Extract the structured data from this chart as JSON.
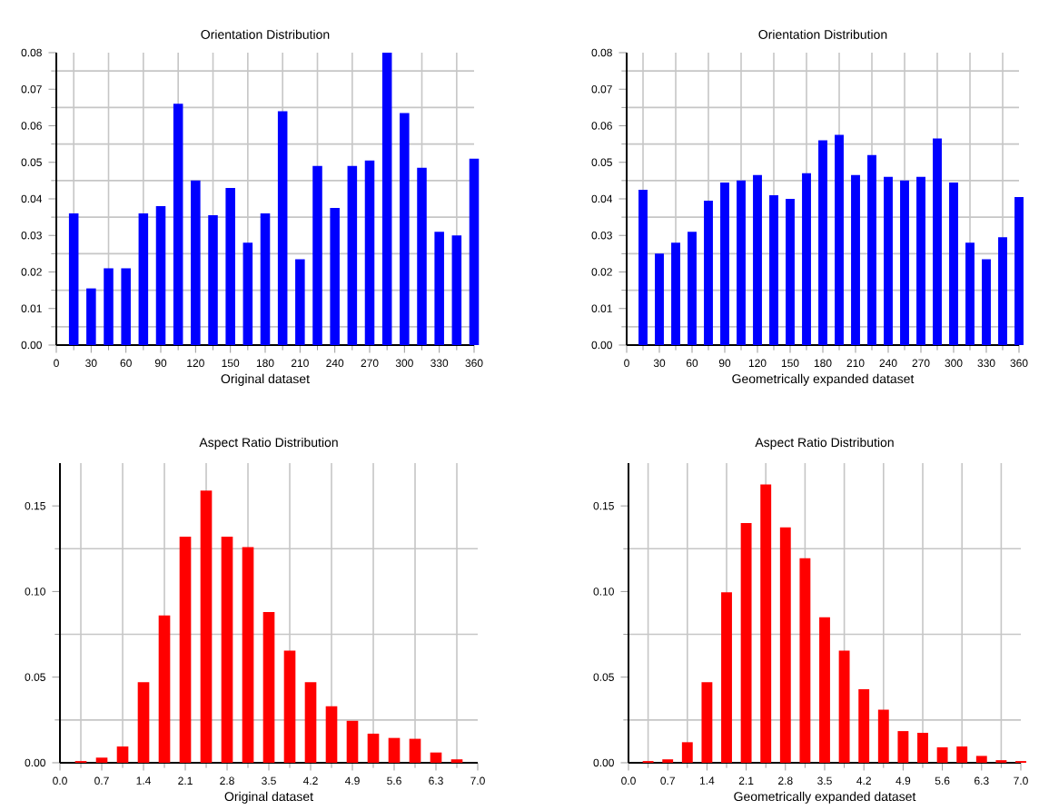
{
  "chart_data": [
    {
      "type": "bar",
      "title": "Orientation Distribution",
      "xlabel": "Original dataset",
      "color": "#0000ff",
      "grid": true,
      "x": [
        15,
        30,
        45,
        60,
        75,
        90,
        105,
        120,
        135,
        150,
        165,
        180,
        195,
        210,
        225,
        240,
        255,
        270,
        285,
        300,
        315,
        330,
        345,
        360
      ],
      "values": [
        0.036,
        0.0155,
        0.021,
        0.021,
        0.036,
        0.038,
        0.066,
        0.045,
        0.0355,
        0.043,
        0.028,
        0.036,
        0.064,
        0.0235,
        0.049,
        0.0375,
        0.049,
        0.0505,
        0.08,
        0.0635,
        0.0485,
        0.031,
        0.03,
        0.051
      ],
      "xlim": [
        0,
        360
      ],
      "xticks": [
        0,
        30,
        60,
        90,
        120,
        150,
        180,
        210,
        240,
        270,
        300,
        330,
        360
      ],
      "ylim": [
        0,
        0.08
      ],
      "yticks": [
        {
          "value": 0,
          "label": "0.00"
        },
        {
          "value": 0.01,
          "label": "0.01"
        },
        {
          "value": 0.02,
          "label": "0.02"
        },
        {
          "value": 0.03,
          "label": "0.03"
        },
        {
          "value": 0.04,
          "label": "0.04"
        },
        {
          "value": 0.05,
          "label": "0.05"
        },
        {
          "value": 0.06,
          "label": "0.06"
        },
        {
          "value": 0.07,
          "label": "0.07"
        },
        {
          "value": 0.08,
          "label": "0.08"
        }
      ]
    },
    {
      "type": "bar",
      "title": "Orientation Distribution",
      "xlabel": "Geometrically expanded dataset",
      "color": "#0000ff",
      "grid": true,
      "x": [
        15,
        30,
        45,
        60,
        75,
        90,
        105,
        120,
        135,
        150,
        165,
        180,
        195,
        210,
        225,
        240,
        255,
        270,
        285,
        300,
        315,
        330,
        345,
        360
      ],
      "values": [
        0.0425,
        0.025,
        0.028,
        0.031,
        0.0395,
        0.0445,
        0.045,
        0.0465,
        0.041,
        0.04,
        0.047,
        0.056,
        0.0575,
        0.0465,
        0.052,
        0.046,
        0.045,
        0.046,
        0.0565,
        0.0445,
        0.028,
        0.0235,
        0.0295,
        0.0405
      ],
      "xlim": [
        0,
        360
      ],
      "xticks": [
        0,
        30,
        60,
        90,
        120,
        150,
        180,
        210,
        240,
        270,
        300,
        330,
        360
      ],
      "ylim": [
        0,
        0.08
      ],
      "yticks": [
        {
          "value": 0,
          "label": "0.00"
        },
        {
          "value": 0.01,
          "label": "0.01"
        },
        {
          "value": 0.02,
          "label": "0.02"
        },
        {
          "value": 0.03,
          "label": "0.03"
        },
        {
          "value": 0.04,
          "label": "0.04"
        },
        {
          "value": 0.05,
          "label": "0.05"
        },
        {
          "value": 0.06,
          "label": "0.06"
        },
        {
          "value": 0.07,
          "label": "0.07"
        },
        {
          "value": 0.08,
          "label": "0.08"
        }
      ]
    },
    {
      "type": "bar",
      "title": "Aspect Ratio Distribution",
      "xlabel": "Original dataset",
      "color": "#ff0000",
      "grid": true,
      "x": [
        0.35,
        0.7,
        1.05,
        1.4,
        1.75,
        2.1,
        2.45,
        2.8,
        3.15,
        3.5,
        3.85,
        4.2,
        4.55,
        4.9,
        5.25,
        5.6,
        5.95,
        6.3,
        6.65
      ],
      "values": [
        0.001,
        0.003,
        0.0095,
        0.047,
        0.086,
        0.132,
        0.159,
        0.132,
        0.126,
        0.088,
        0.0655,
        0.047,
        0.033,
        0.0245,
        0.017,
        0.0145,
        0.014,
        0.006,
        0.002
      ],
      "xlim": [
        0,
        7
      ],
      "xticks": [
        {
          "value": 0,
          "label": "0.0"
        },
        {
          "value": 0.7,
          "label": "0.7"
        },
        {
          "value": 1.4,
          "label": "1.4"
        },
        {
          "value": 2.1,
          "label": "2.1"
        },
        {
          "value": 2.8,
          "label": "2.8"
        },
        {
          "value": 3.5,
          "label": "3.5"
        },
        {
          "value": 4.2,
          "label": "4.2"
        },
        {
          "value": 4.9,
          "label": "4.9"
        },
        {
          "value": 5.6,
          "label": "5.6"
        },
        {
          "value": 6.3,
          "label": "6.3"
        },
        {
          "value": 7,
          "label": "7.0"
        }
      ],
      "ylim": [
        0,
        0.175
      ],
      "yticks": [
        {
          "value": 0,
          "label": "0.00"
        },
        {
          "value": 0.05,
          "label": "0.05"
        },
        {
          "value": 0.1,
          "label": "0.10"
        },
        {
          "value": 0.15,
          "label": "0.15"
        }
      ]
    },
    {
      "type": "bar",
      "title": "Aspect Ratio Distribution",
      "xlabel": "Geometrically expanded dataset",
      "color": "#ff0000",
      "grid": true,
      "x": [
        0.35,
        0.7,
        1.05,
        1.4,
        1.75,
        2.1,
        2.45,
        2.8,
        3.15,
        3.5,
        3.85,
        4.2,
        4.55,
        4.9,
        5.25,
        5.6,
        5.95,
        6.3,
        6.65,
        7
      ],
      "values": [
        0.001,
        0.002,
        0.012,
        0.047,
        0.0995,
        0.14,
        0.1625,
        0.1375,
        0.1195,
        0.085,
        0.0655,
        0.043,
        0.031,
        0.0185,
        0.0175,
        0.009,
        0.0095,
        0.004,
        0.0015,
        0.001
      ],
      "xlim": [
        0,
        7
      ],
      "xticks": [
        {
          "value": 0,
          "label": "0.0"
        },
        {
          "value": 0.7,
          "label": "0.7"
        },
        {
          "value": 1.4,
          "label": "1.4"
        },
        {
          "value": 2.1,
          "label": "2.1"
        },
        {
          "value": 2.8,
          "label": "2.8"
        },
        {
          "value": 3.5,
          "label": "3.5"
        },
        {
          "value": 4.2,
          "label": "4.2"
        },
        {
          "value": 4.9,
          "label": "4.9"
        },
        {
          "value": 5.6,
          "label": "5.6"
        },
        {
          "value": 6.3,
          "label": "6.3"
        },
        {
          "value": 7,
          "label": "7.0"
        }
      ],
      "ylim": [
        0,
        0.175
      ],
      "yticks": [
        {
          "value": 0,
          "label": "0.00"
        },
        {
          "value": 0.05,
          "label": "0.05"
        },
        {
          "value": 0.1,
          "label": "0.10"
        },
        {
          "value": 0.15,
          "label": "0.15"
        }
      ]
    }
  ]
}
